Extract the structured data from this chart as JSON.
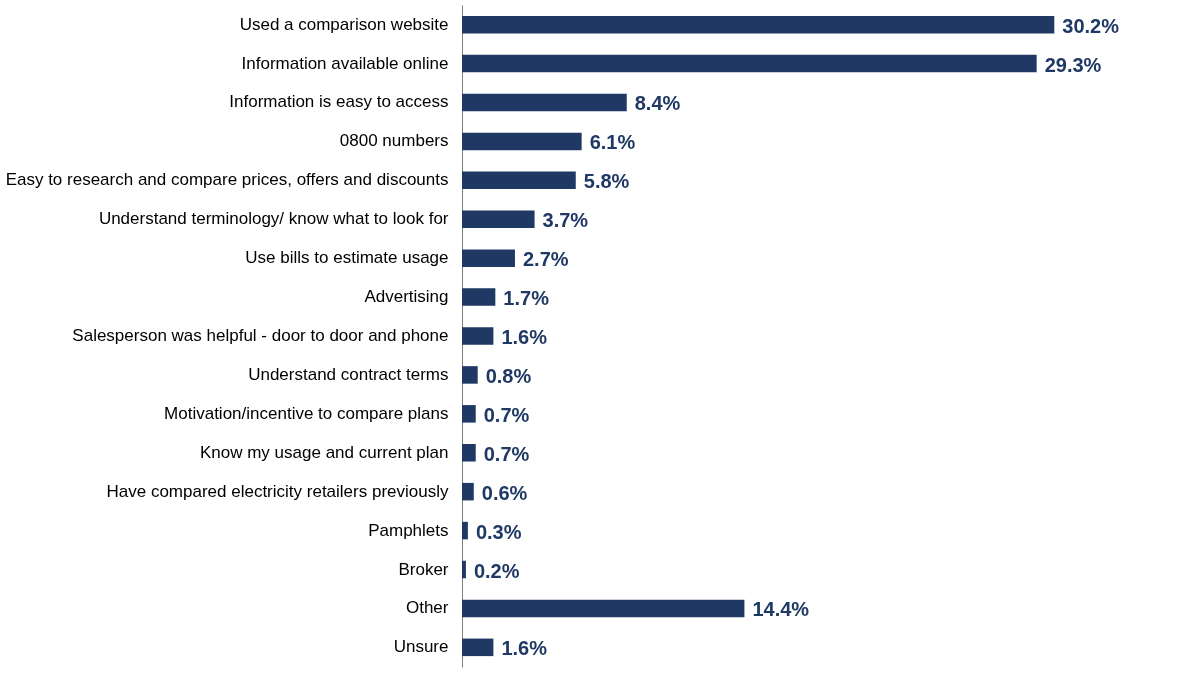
{
  "chart_data": {
    "type": "bar",
    "orientation": "horizontal",
    "categories": [
      "Used a comparison website ",
      "Information available online",
      "Information is easy to access",
      "0800 numbers",
      "Easy to research and compare prices, offers and discounts",
      "Understand terminology/ know what to look for",
      "Use bills to estimate usage",
      "Advertising",
      "Salesperson was helpful - door to door and phone",
      "Understand contract terms",
      "Motivation/incentive to compare plans",
      "Know my usage and current plan",
      "Have compared electricity retailers previously",
      "Pamphlets",
      "Broker",
      "Other",
      "Unsure"
    ],
    "values": [
      30.2,
      29.3,
      8.4,
      6.1,
      5.8,
      3.7,
      2.7,
      1.7,
      1.6,
      0.8,
      0.7,
      0.7,
      0.6,
      0.3,
      0.2,
      14.4,
      1.6
    ],
    "value_labels": [
      "30.2%",
      "29.3%",
      "8.4%",
      "6.1%",
      "5.8%",
      "3.7%",
      "2.7%",
      "1.7%",
      "1.6%",
      "0.8%",
      "0.7%",
      "0.7%",
      "0.6%",
      "0.3%",
      "0.2%",
      "14.4%",
      "1.6%"
    ],
    "color": "#1f3864",
    "grid": false
  }
}
